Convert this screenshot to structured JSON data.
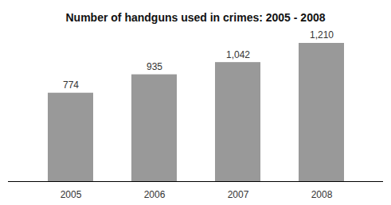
{
  "chart_data": {
    "type": "bar",
    "title": "Number of handguns used in crimes: 2005 - 2008",
    "categories": [
      "2005",
      "2006",
      "2007",
      "2008"
    ],
    "values": [
      774,
      935,
      1042,
      1210
    ],
    "value_labels": [
      "774",
      "935",
      "1,042",
      "1,210"
    ],
    "color": "#999999",
    "data_labels": true,
    "tick_labels": "x",
    "grid": false
  }
}
